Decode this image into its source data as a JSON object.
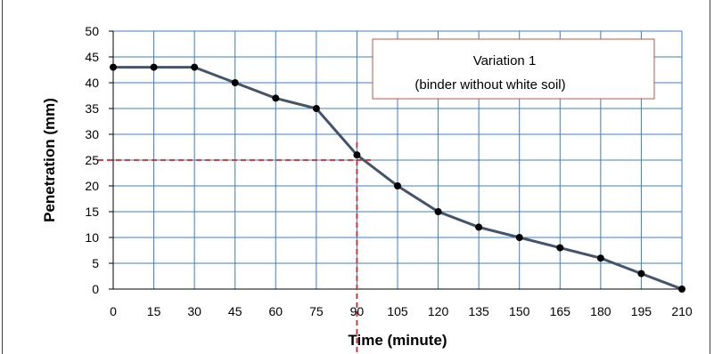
{
  "chart_data": {
    "type": "line",
    "title": "",
    "xlabel": "Time (minute)",
    "ylabel": "Penetration  (mm)",
    "x": [
      0,
      15,
      30,
      45,
      60,
      75,
      90,
      105,
      120,
      135,
      150,
      165,
      180,
      195,
      210
    ],
    "xticks": [
      "0",
      "15",
      "30",
      "45",
      "60",
      "75",
      "90",
      "105",
      "120",
      "135",
      "150",
      "165",
      "180",
      "195",
      "210"
    ],
    "yticks": [
      "0",
      "5",
      "10",
      "15",
      "20",
      "25",
      "30",
      "35",
      "40",
      "45",
      "50"
    ],
    "xlim": [
      0,
      210
    ],
    "ylim": [
      0,
      50
    ],
    "grid": true,
    "series": [
      {
        "values": [
          43,
          43,
          43,
          40,
          37,
          35,
          26,
          20,
          15,
          12,
          10,
          8,
          6,
          3,
          0
        ],
        "color": "#44546a",
        "marker_color": "#000000"
      }
    ],
    "reference_lines": {
      "horizontal_y": 25,
      "vertical_x": 90,
      "color": "#e02020",
      "style": "dashed"
    },
    "annotation": {
      "line1": "Variation 1",
      "line2": "(binder without white soil)"
    },
    "colors": {
      "grid": "#3a7fc4",
      "border_box": "#c0504d",
      "frame": "#404040"
    }
  }
}
